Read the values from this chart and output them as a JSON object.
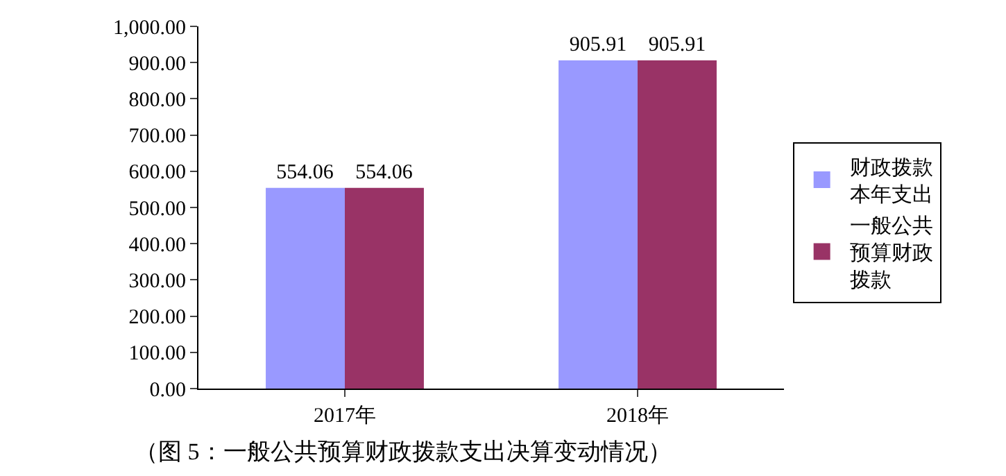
{
  "chart_data": {
    "type": "bar",
    "categories": [
      "2017年",
      "2018年"
    ],
    "series": [
      {
        "name": "财政拨款本年支出",
        "color": "#9999ff",
        "values": [
          554.06,
          905.91
        ]
      },
      {
        "name": "一般公共预算财政拨款",
        "color": "#993366",
        "values": [
          554.06,
          905.91
        ]
      }
    ],
    "ylim": [
      0,
      1000
    ],
    "yticks": [
      {
        "value": 0,
        "label": "0.00"
      },
      {
        "value": 100,
        "label": "100.00"
      },
      {
        "value": 200,
        "label": "200.00"
      },
      {
        "value": 300,
        "label": "300.00"
      },
      {
        "value": 400,
        "label": "400.00"
      },
      {
        "value": 500,
        "label": "500.00"
      },
      {
        "value": 600,
        "label": "600.00"
      },
      {
        "value": 700,
        "label": "700.00"
      },
      {
        "value": 800,
        "label": "800.00"
      },
      {
        "value": 900,
        "label": "900.00"
      },
      {
        "value": 1000,
        "label": "1,000.00"
      }
    ],
    "data_labels": true,
    "grid": false,
    "legend": "right",
    "annotations": [
      "（图 5：一般公共预算财政拨款支出决算变动情况）"
    ]
  }
}
